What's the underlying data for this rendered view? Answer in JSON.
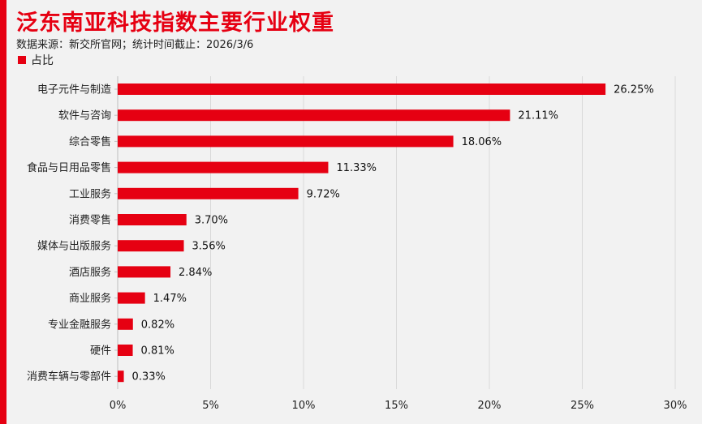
{
  "header": {
    "title": "泛东南亚科技指数主要行业权重",
    "subtitle": "数据来源：新交所官网；统计时间截止：2026/3/6"
  },
  "colors": {
    "accent": "#e60012",
    "bar": "#e60012",
    "grid": "#d9d9d9",
    "background": "#f2f2f2"
  },
  "chart_data": {
    "type": "bar",
    "orientation": "horizontal",
    "title": "泛东南亚科技指数主要行业权重",
    "categories": [
      "电子元件与制造",
      "软件与咨询",
      "综合零售",
      "食品与日用品零售",
      "工业服务",
      "消费零售",
      "媒体与出版服务",
      "酒店服务",
      "商业服务",
      "专业金融服务",
      "硬件",
      "消费车辆与零部件"
    ],
    "series": [
      {
        "name": "占比",
        "values": [
          26.25,
          21.11,
          18.06,
          11.33,
          9.72,
          3.7,
          3.56,
          2.84,
          1.47,
          0.82,
          0.81,
          0.33
        ],
        "labels": [
          "26.25%",
          "21.11%",
          "18.06%",
          "11.33%",
          "9.72%",
          "3.70%",
          "3.56%",
          "2.84%",
          "1.47%",
          "0.82%",
          "0.81%",
          "0.33%"
        ]
      }
    ],
    "xlim": [
      0,
      30
    ],
    "xticks": [
      0,
      5,
      10,
      15,
      20,
      25,
      30
    ],
    "xtick_labels": [
      "0%",
      "5%",
      "10%",
      "15%",
      "20%",
      "25%",
      "30%"
    ],
    "grid": "vertical",
    "legend_position": "top-left"
  }
}
